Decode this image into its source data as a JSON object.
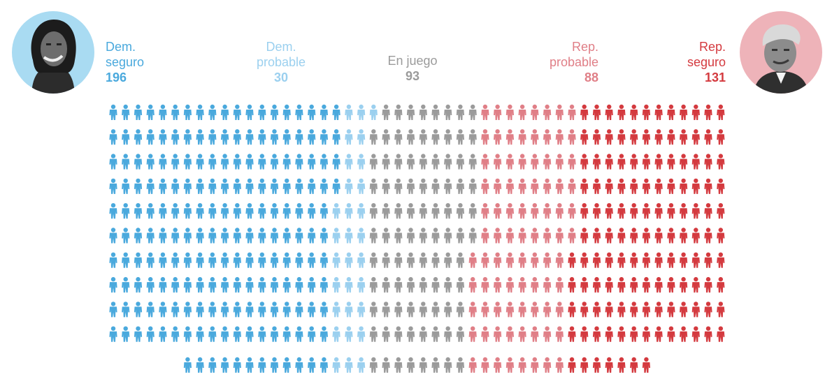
{
  "colors": {
    "dem_seguro": "#4aa9dd",
    "dem_probable": "#9bd0ef",
    "en_juego": "#9b9b9b",
    "rep_probable": "#e07f87",
    "rep_seguro": "#d43a3f"
  },
  "avatars": {
    "dem": "portrait-photo-dem",
    "rep": "portrait-photo-rep"
  },
  "chart_data": {
    "type": "waffle",
    "total": 538,
    "categories": [
      {
        "line1": "Dem.",
        "line2": "seguro",
        "value": 196,
        "display": "196",
        "color": "#4aa9dd"
      },
      {
        "line1": "Dem.",
        "line2": "probable",
        "value": 30,
        "display": "30",
        "color": "#9bd0ef"
      },
      {
        "line1": "En juego",
        "line2": "",
        "value": 93,
        "display": "93",
        "color": "#9b9b9b"
      },
      {
        "line1": "Rep.",
        "line2": "probable",
        "value": 88,
        "display": "88",
        "color": "#e07f87"
      },
      {
        "line1": "Rep.",
        "line2": "seguro",
        "value": 131,
        "display": "131",
        "color": "#d43a3f"
      }
    ]
  }
}
